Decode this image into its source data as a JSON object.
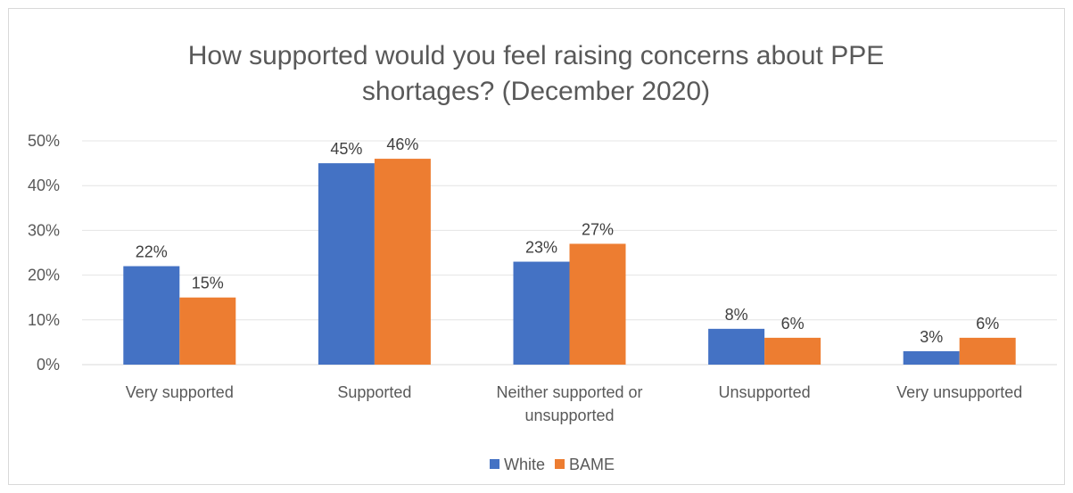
{
  "chart_data": {
    "type": "bar",
    "title": "How supported would you feel raising concerns about PPE shortages? (December 2020)",
    "title_lines": [
      "How supported would you feel raising concerns about PPE",
      "shortages? (December 2020)"
    ],
    "categories": [
      "Very supported",
      "Supported",
      "Neither supported or unsupported",
      "Unsupported",
      "Very unsupported"
    ],
    "category_lines": [
      [
        "Very supported"
      ],
      [
        "Supported"
      ],
      [
        "Neither supported or",
        "unsupported"
      ],
      [
        "Unsupported"
      ],
      [
        "Very unsupported"
      ]
    ],
    "series": [
      {
        "name": "White",
        "values": [
          22,
          45,
          23,
          8,
          3
        ],
        "labels": [
          "22%",
          "45%",
          "23%",
          "8%",
          "3%"
        ],
        "color": "#4472c4"
      },
      {
        "name": "BAME",
        "values": [
          15,
          46,
          27,
          6,
          6
        ],
        "labels": [
          "15%",
          "46%",
          "27%",
          "6%",
          "6%"
        ],
        "color": "#ed7d31"
      }
    ],
    "y_ticks": [
      "0%",
      "10%",
      "20%",
      "30%",
      "40%",
      "50%"
    ],
    "ylim": [
      0,
      50
    ],
    "grid": true,
    "legend_position": "bottom",
    "xlabel": "",
    "ylabel": ""
  }
}
